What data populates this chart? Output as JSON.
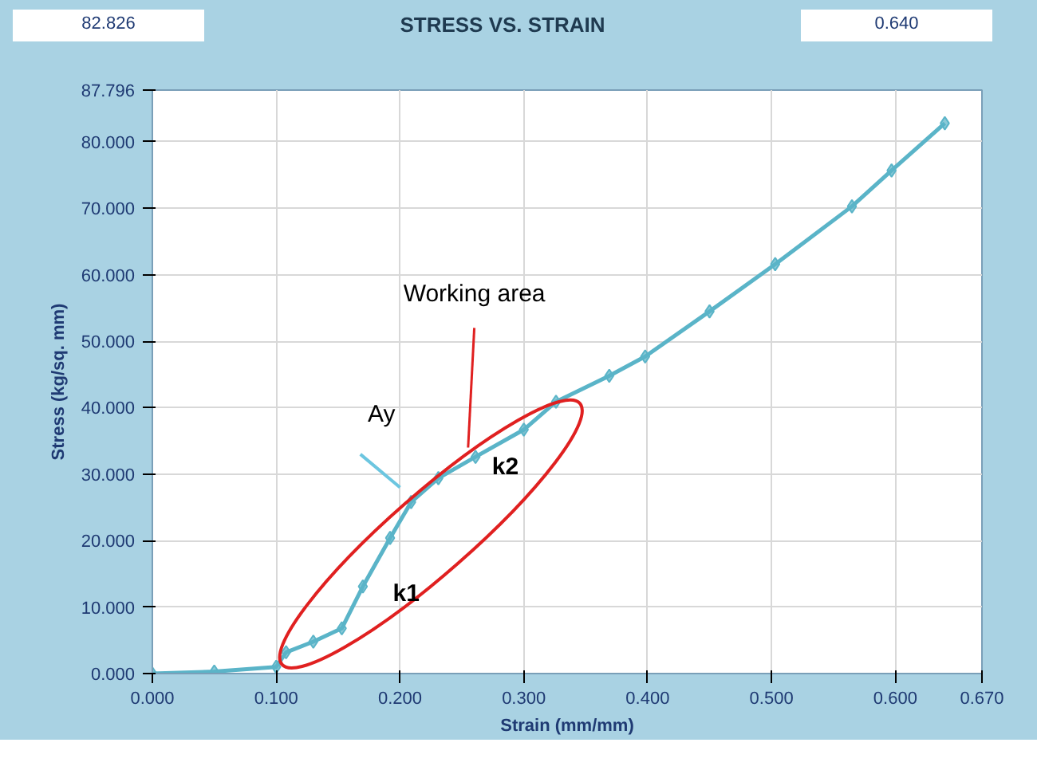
{
  "chart_data": {
    "type": "line",
    "title": "STRESS VS. STRAIN",
    "xlabel": "Strain (mm/mm)",
    "ylabel": "Stress (kg/sq. mm)",
    "x": [
      0.0,
      0.05,
      0.1,
      0.108,
      0.13,
      0.153,
      0.17,
      0.192,
      0.209,
      0.231,
      0.261,
      0.3,
      0.326,
      0.369,
      0.398,
      0.45,
      0.503,
      0.565,
      0.597,
      0.64
    ],
    "series": [
      {
        "color": "#5ab4c8",
        "values": [
          0.0,
          0.3,
          1.0,
          3.2,
          4.8,
          6.8,
          13.1,
          20.4,
          25.8,
          29.4,
          32.6,
          36.7,
          40.9,
          44.8,
          47.7,
          54.5,
          61.6,
          70.3,
          75.7,
          82.8
        ]
      }
    ],
    "marker": "diamond",
    "grid": true,
    "xlim": [
      0,
      0.67
    ],
    "ylim": [
      0,
      87.796
    ],
    "xticks": [
      {
        "value": 0,
        "label": "0.000"
      },
      {
        "value": 0.1,
        "label": "0.100"
      },
      {
        "value": 0.2,
        "label": "0.200"
      },
      {
        "value": 0.3,
        "label": "0.300"
      },
      {
        "value": 0.4,
        "label": "0.400"
      },
      {
        "value": 0.5,
        "label": "0.500"
      },
      {
        "value": 0.6,
        "label": "0.600"
      },
      {
        "value": 0.67,
        "label": "0.670"
      }
    ],
    "yticks": [
      {
        "value": 0,
        "label": "0.000"
      },
      {
        "value": 10,
        "label": "10.000"
      },
      {
        "value": 20,
        "label": "20.000"
      },
      {
        "value": 30,
        "label": "30.000"
      },
      {
        "value": 40,
        "label": "40.000"
      },
      {
        "value": 50,
        "label": "50.000"
      },
      {
        "value": 60,
        "label": "60.000"
      },
      {
        "value": 70,
        "label": "70.000"
      },
      {
        "value": 80,
        "label": "80.000"
      },
      {
        "value": 87.796,
        "label": "87.796"
      }
    ],
    "annotations": [
      "82.826",
      "0.640",
      "Working area",
      "Ay",
      "k1",
      "k2"
    ]
  }
}
